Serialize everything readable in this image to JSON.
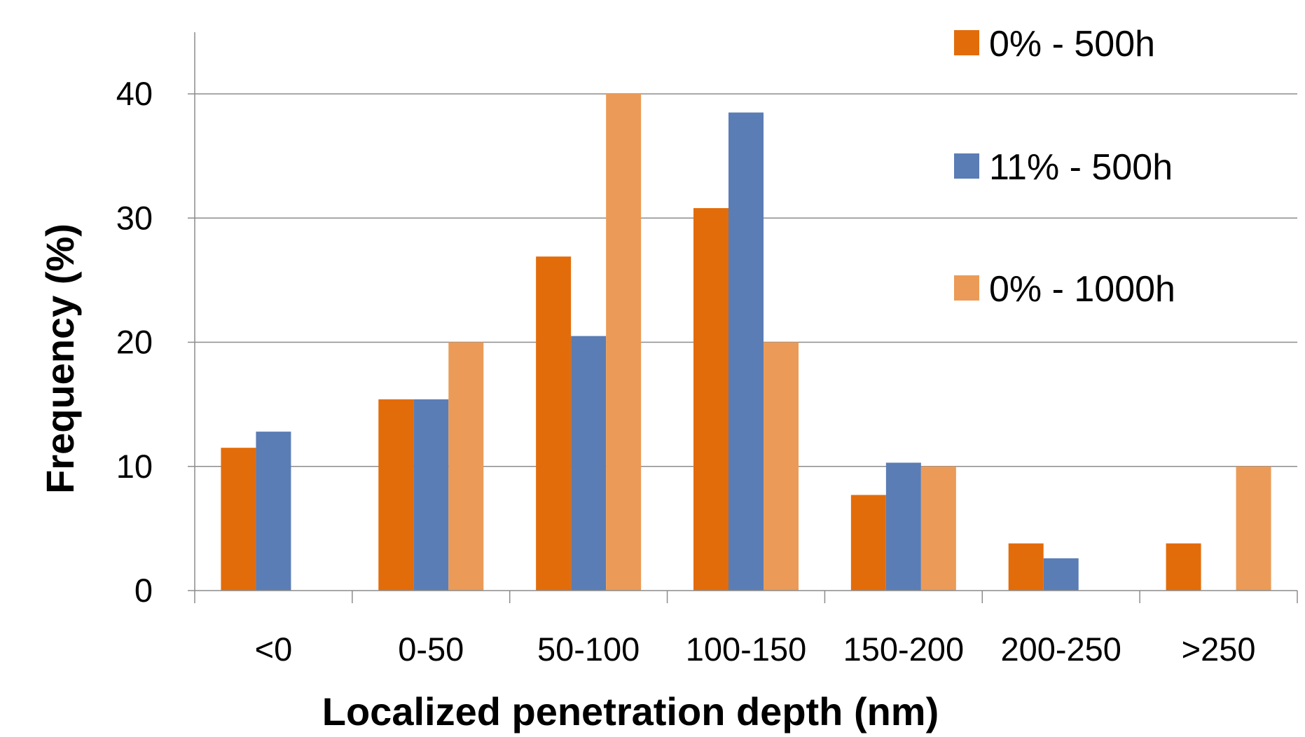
{
  "chart_data": {
    "type": "bar",
    "xlabel": "Localized penetration depth (nm)",
    "ylabel": "Frequency (%)",
    "categories": [
      "<0",
      "0-50",
      "50-100",
      "100-150",
      "150-200",
      "200-250",
      ">250"
    ],
    "ylim": [
      0,
      40
    ],
    "yticks": [
      0,
      10,
      20,
      30,
      40
    ],
    "grid": true,
    "legend_position": "top-right",
    "series": [
      {
        "name": "0% - 500h",
        "color": "#E36C0A",
        "values": [
          11.5,
          15.4,
          26.9,
          30.8,
          7.7,
          3.8,
          3.8
        ]
      },
      {
        "name": "11% - 500h",
        "color": "#5B7DB5",
        "values": [
          12.8,
          15.4,
          20.5,
          38.5,
          10.3,
          2.6,
          0
        ]
      },
      {
        "name": "0% - 1000h",
        "color": "#EB9B57",
        "values": [
          0,
          20,
          40,
          20,
          10,
          0,
          10
        ]
      }
    ]
  }
}
